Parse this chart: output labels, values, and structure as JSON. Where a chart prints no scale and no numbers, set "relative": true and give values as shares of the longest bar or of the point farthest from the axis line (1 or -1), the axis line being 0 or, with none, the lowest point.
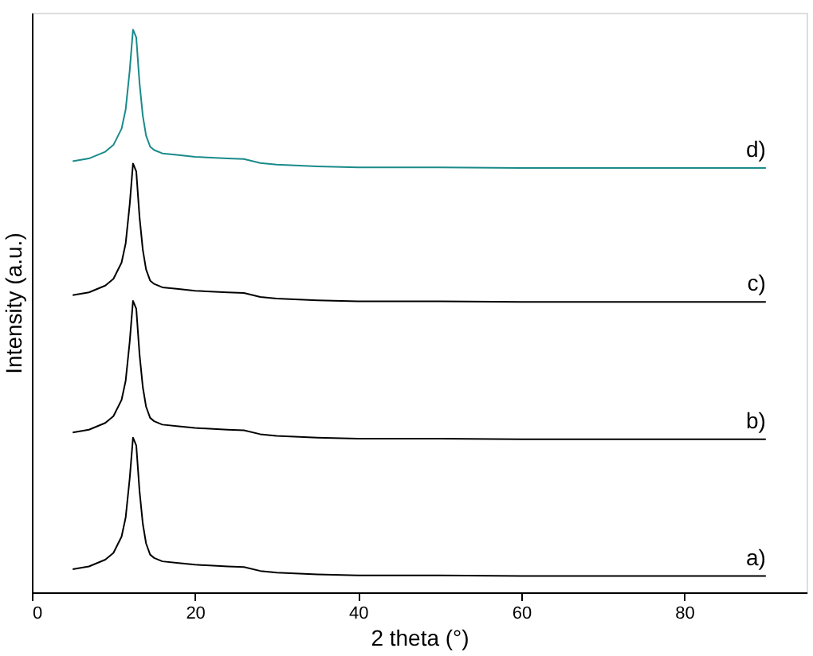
{
  "chart_data": {
    "type": "line",
    "relative": true,
    "xlabel": "2 theta (°)",
    "ylabel": "Intensity (a.u.)",
    "x": [
      5,
      7,
      9,
      10,
      11,
      11.5,
      12,
      12.4,
      12.8,
      13.2,
      13.6,
      14,
      14.5,
      15,
      16,
      18,
      20,
      24,
      26,
      28,
      30,
      35,
      40,
      50,
      60,
      70,
      80,
      90
    ],
    "xlim": [
      0,
      95
    ],
    "xticks": [
      0,
      20,
      40,
      60,
      80
    ],
    "tick_labels": "x",
    "grid": false,
    "legend": false,
    "series": [
      {
        "name": "a)",
        "color": "#000000",
        "values": [
          0.041,
          0.046,
          0.058,
          0.07,
          0.099,
          0.133,
          0.203,
          0.275,
          0.261,
          0.18,
          0.122,
          0.087,
          0.067,
          0.061,
          0.055,
          0.052,
          0.049,
          0.046,
          0.045,
          0.038,
          0.035,
          0.032,
          0.03,
          0.03,
          0.029,
          0.029,
          0.029,
          0.029
        ]
      },
      {
        "name": "b)",
        "color": "#000000",
        "values": [
          0.284,
          0.289,
          0.301,
          0.313,
          0.342,
          0.376,
          0.446,
          0.518,
          0.504,
          0.423,
          0.365,
          0.33,
          0.31,
          0.304,
          0.298,
          0.295,
          0.292,
          0.289,
          0.288,
          0.281,
          0.278,
          0.275,
          0.273,
          0.273,
          0.272,
          0.272,
          0.272,
          0.272
        ]
      },
      {
        "name": "c)",
        "color": "#000000",
        "values": [
          0.528,
          0.533,
          0.545,
          0.557,
          0.586,
          0.62,
          0.69,
          0.762,
          0.748,
          0.667,
          0.609,
          0.574,
          0.554,
          0.548,
          0.542,
          0.539,
          0.536,
          0.533,
          0.532,
          0.525,
          0.522,
          0.519,
          0.517,
          0.517,
          0.516,
          0.516,
          0.516,
          0.516
        ]
      },
      {
        "name": "d)",
        "color": "#1a8a8a",
        "values": [
          0.766,
          0.771,
          0.783,
          0.795,
          0.824,
          0.858,
          0.928,
          1.0,
          0.986,
          0.905,
          0.847,
          0.812,
          0.792,
          0.786,
          0.78,
          0.777,
          0.774,
          0.771,
          0.77,
          0.763,
          0.76,
          0.757,
          0.755,
          0.755,
          0.754,
          0.754,
          0.754,
          0.754
        ]
      }
    ]
  }
}
